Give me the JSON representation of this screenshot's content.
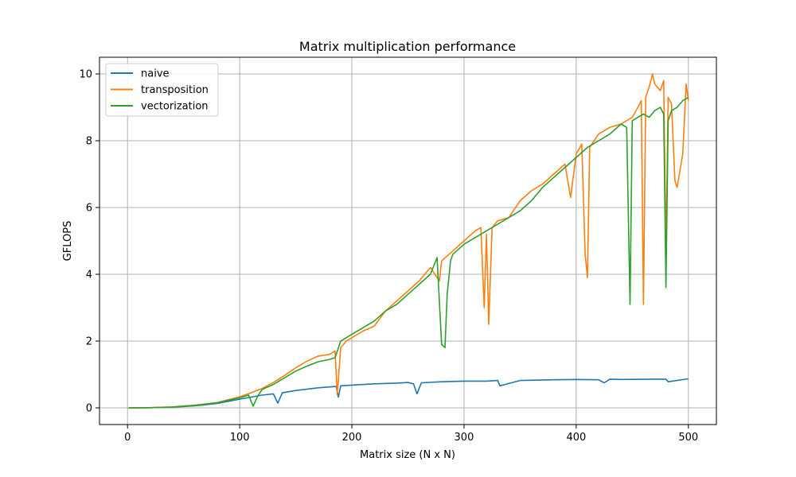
{
  "chart_data": {
    "type": "line",
    "title": "Matrix multiplication performance",
    "xlabel": "Matrix size (N x N)",
    "ylabel": "GFLOPS",
    "xlim": [
      -25,
      525
    ],
    "ylim": [
      -0.5,
      10.5
    ],
    "xticks": [
      0,
      100,
      200,
      300,
      400,
      500
    ],
    "yticks": [
      0,
      2,
      4,
      6,
      8,
      10
    ],
    "grid": true,
    "legend_position": "top-left",
    "series": [
      {
        "name": "naive",
        "color": "#1f77b4",
        "x": [
          1,
          20,
          40,
          60,
          80,
          100,
          120,
          130,
          134,
          138,
          150,
          170,
          186,
          188,
          190,
          200,
          220,
          240,
          250,
          255,
          258,
          262,
          280,
          300,
          320,
          330,
          332,
          350,
          380,
          400,
          420,
          425,
          430,
          440,
          470,
          480,
          482,
          500
        ],
        "y": [
          0.0,
          0.005,
          0.02,
          0.06,
          0.13,
          0.26,
          0.38,
          0.42,
          0.14,
          0.45,
          0.52,
          0.6,
          0.64,
          0.32,
          0.66,
          0.68,
          0.72,
          0.74,
          0.76,
          0.72,
          0.42,
          0.75,
          0.78,
          0.8,
          0.8,
          0.82,
          0.66,
          0.82,
          0.84,
          0.85,
          0.84,
          0.75,
          0.86,
          0.85,
          0.86,
          0.86,
          0.78,
          0.87
        ]
      },
      {
        "name": "transposition",
        "color": "#ff7f0e",
        "x": [
          1,
          20,
          40,
          60,
          80,
          100,
          110,
          120,
          130,
          140,
          150,
          160,
          170,
          180,
          185,
          187,
          190,
          195,
          200,
          210,
          220,
          230,
          240,
          250,
          260,
          270,
          278,
          280,
          290,
          300,
          310,
          315,
          318,
          320,
          322,
          325,
          330,
          340,
          350,
          360,
          370,
          380,
          390,
          395,
          400,
          405,
          408,
          410,
          412,
          420,
          430,
          440,
          450,
          455,
          458,
          460,
          462,
          465,
          468,
          470,
          475,
          478,
          480,
          482,
          485,
          488,
          490,
          495,
          498,
          500
        ],
        "y": [
          0.0,
          0.005,
          0.025,
          0.08,
          0.16,
          0.33,
          0.45,
          0.58,
          0.76,
          0.97,
          1.2,
          1.4,
          1.55,
          1.6,
          1.7,
          0.4,
          1.8,
          2.0,
          2.1,
          2.3,
          2.45,
          2.9,
          3.2,
          3.5,
          3.8,
          4.2,
          3.8,
          4.4,
          4.7,
          5.0,
          5.3,
          5.4,
          3.0,
          5.2,
          2.5,
          5.4,
          5.6,
          5.7,
          6.2,
          6.5,
          6.7,
          7.0,
          7.3,
          6.3,
          7.6,
          7.9,
          4.6,
          3.9,
          7.8,
          8.2,
          8.4,
          8.5,
          8.7,
          9.0,
          9.2,
          3.1,
          9.3,
          9.6,
          10.0,
          9.7,
          9.5,
          9.8,
          4.7,
          9.3,
          9.1,
          6.8,
          6.6,
          7.6,
          9.7,
          9.2
        ]
      },
      {
        "name": "vectorization",
        "color": "#2ca02c",
        "x": [
          1,
          20,
          40,
          60,
          80,
          100,
          108,
          112,
          116,
          120,
          130,
          140,
          150,
          160,
          170,
          180,
          185,
          190,
          195,
          200,
          210,
          220,
          230,
          240,
          250,
          260,
          270,
          276,
          280,
          283,
          285,
          288,
          290,
          300,
          310,
          320,
          330,
          340,
          350,
          360,
          370,
          380,
          390,
          400,
          410,
          420,
          430,
          440,
          445,
          448,
          450,
          455,
          460,
          465,
          470,
          475,
          478,
          480,
          482,
          485,
          490,
          495,
          500
        ],
        "y": [
          0.0,
          0.005,
          0.025,
          0.07,
          0.15,
          0.3,
          0.38,
          0.05,
          0.35,
          0.55,
          0.7,
          0.9,
          1.1,
          1.25,
          1.38,
          1.45,
          1.5,
          2.0,
          2.1,
          2.2,
          2.4,
          2.6,
          2.9,
          3.1,
          3.4,
          3.7,
          4.0,
          4.5,
          1.9,
          1.8,
          3.4,
          4.4,
          4.6,
          4.9,
          5.1,
          5.3,
          5.5,
          5.7,
          5.9,
          6.2,
          6.6,
          6.9,
          7.2,
          7.5,
          7.8,
          8.0,
          8.2,
          8.5,
          8.4,
          3.1,
          8.6,
          8.7,
          8.8,
          8.7,
          8.9,
          9.0,
          8.8,
          3.6,
          8.6,
          8.9,
          9.0,
          9.2,
          9.3
        ]
      }
    ]
  }
}
